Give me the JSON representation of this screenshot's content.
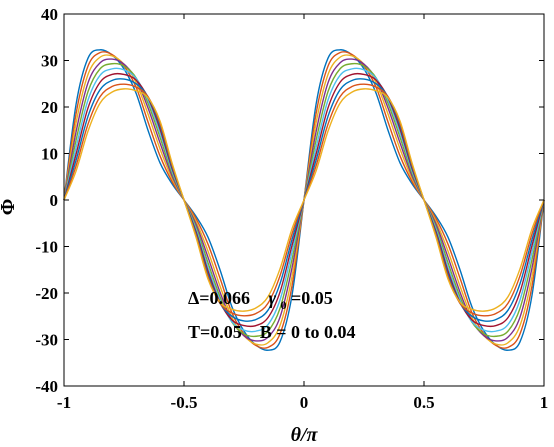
{
  "chart_data": {
    "type": "line",
    "xlabel": "θ/π",
    "ylabel": "Φ",
    "xlim": [
      -1,
      1
    ],
    "ylim": [
      -40,
      40
    ],
    "grid": false,
    "x_ticks": [
      -1,
      -0.5,
      0,
      0.5,
      1
    ],
    "x_tick_labels": [
      "-1",
      "-0.5",
      "0",
      "0.5",
      "1"
    ],
    "y_ticks": [
      -40,
      -30,
      -20,
      -10,
      0,
      10,
      20,
      30,
      40
    ],
    "y_tick_labels": [
      "-40",
      "-30",
      "-20",
      "-10",
      "0",
      "10",
      "20",
      "30",
      "40"
    ],
    "annotations": {
      "line1_delta": "Δ=0.066",
      "line1_gamma": "γ",
      "line1_gamma_sub": "0",
      "line1_gamma_val": "=0.05",
      "line2": "T=0.05    B = 0 to 0.04"
    },
    "x_samples": [
      0,
      0.05,
      0.1,
      0.15,
      0.2,
      0.25,
      0.3,
      0.35,
      0.4,
      0.45,
      0.5
    ],
    "series": [
      {
        "color": "#0072BD",
        "values": [
          0,
          20.5,
          30.5,
          32.3,
          31.2,
          28.2,
          23.0,
          15.0,
          8.0,
          3.5,
          0
        ]
      },
      {
        "color": "#D95319",
        "values": [
          0,
          18.5,
          28.8,
          31.7,
          31.3,
          28.8,
          24.3,
          16.8,
          9.5,
          4.0,
          0
        ]
      },
      {
        "color": "#EDB120",
        "values": [
          0,
          16.5,
          27.0,
          30.7,
          31.0,
          29.2,
          25.3,
          18.5,
          11.0,
          4.6,
          0
        ]
      },
      {
        "color": "#7E2F8E",
        "values": [
          0,
          14.6,
          25.2,
          29.5,
          30.3,
          29.2,
          26.0,
          19.8,
          12.3,
          5.2,
          0
        ]
      },
      {
        "color": "#77AC30",
        "values": [
          0,
          12.8,
          23.3,
          28.2,
          29.3,
          28.8,
          26.3,
          20.8,
          13.5,
          5.8,
          0
        ]
      },
      {
        "color": "#4DBEEE",
        "values": [
          0,
          11.2,
          21.5,
          26.8,
          28.2,
          28.0,
          26.2,
          21.5,
          14.5,
          6.3,
          0
        ]
      },
      {
        "color": "#A2142F",
        "values": [
          0,
          9.8,
          19.8,
          25.3,
          27.0,
          27.0,
          25.8,
          22.0,
          15.3,
          6.8,
          0
        ]
      },
      {
        "color": "#0072BD",
        "values": [
          0,
          8.5,
          18.0,
          23.7,
          25.7,
          26.0,
          25.0,
          22.2,
          16.0,
          7.2,
          0
        ]
      },
      {
        "color": "#D95319",
        "values": [
          0,
          7.3,
          16.3,
          22.2,
          24.4,
          24.9,
          24.3,
          22.2,
          16.5,
          7.6,
          0
        ]
      },
      {
        "color": "#EDB120",
        "values": [
          0,
          6.2,
          14.8,
          20.8,
          23.2,
          23.9,
          23.5,
          22.0,
          17.0,
          8.0,
          0
        ]
      }
    ]
  }
}
